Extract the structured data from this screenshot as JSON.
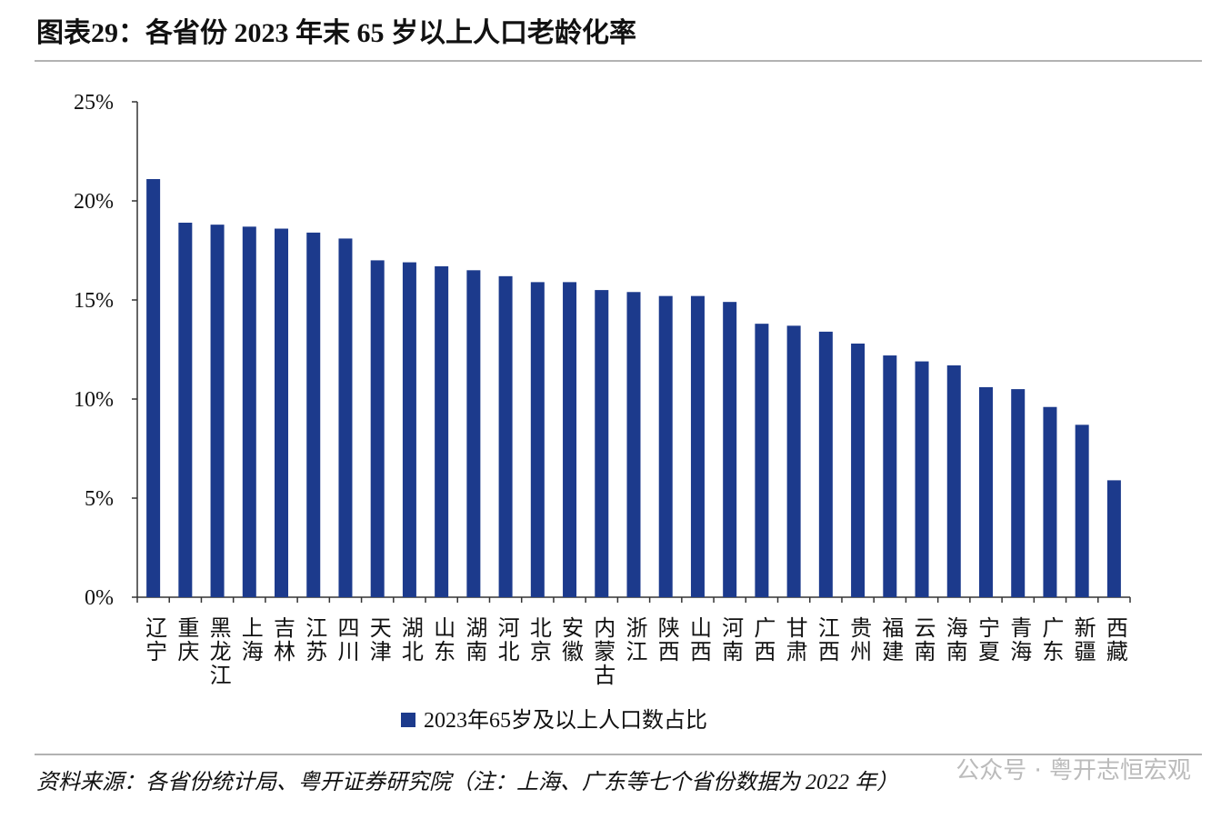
{
  "chart_data": {
    "type": "bar",
    "title": "图表29：各省份 2023 年末 65 岁以上人口老龄化率",
    "categories": [
      "辽宁",
      "重庆",
      "黑龙江",
      "上海",
      "吉林",
      "江苏",
      "四川",
      "天津",
      "湖北",
      "山东",
      "湖南",
      "河北",
      "北京",
      "安徽",
      "内蒙古",
      "浙江",
      "陕西",
      "山西",
      "河南",
      "广西",
      "甘肃",
      "江西",
      "贵州",
      "福建",
      "云南",
      "海南",
      "宁夏",
      "青海",
      "广东",
      "新疆",
      "西藏"
    ],
    "series": [
      {
        "name": "2023年65岁及以上人口数占比",
        "color": "#1c3a8c",
        "values": [
          21.1,
          18.9,
          18.8,
          18.7,
          18.6,
          18.4,
          18.1,
          17.0,
          16.9,
          16.7,
          16.5,
          16.2,
          15.9,
          15.9,
          15.5,
          15.4,
          15.2,
          15.2,
          14.9,
          13.8,
          13.7,
          13.4,
          12.8,
          12.2,
          11.9,
          11.7,
          10.6,
          10.5,
          9.6,
          8.7,
          5.9
        ]
      }
    ],
    "ylim": [
      0,
      25
    ],
    "yticks": [
      {
        "value": 0,
        "label": "0%"
      },
      {
        "value": 5,
        "label": "5%"
      },
      {
        "value": 10,
        "label": "10%"
      },
      {
        "value": 15,
        "label": "15%"
      },
      {
        "value": 20,
        "label": "20%"
      },
      {
        "value": 25,
        "label": "25%"
      }
    ],
    "grid": false,
    "legend": "bottom",
    "source": "资料来源：各省份统计局、粤开证券研究院（注：上海、广东等七个省份数据为 2022 年）",
    "watermark": "公众号 · 粤开志恒宏观"
  }
}
